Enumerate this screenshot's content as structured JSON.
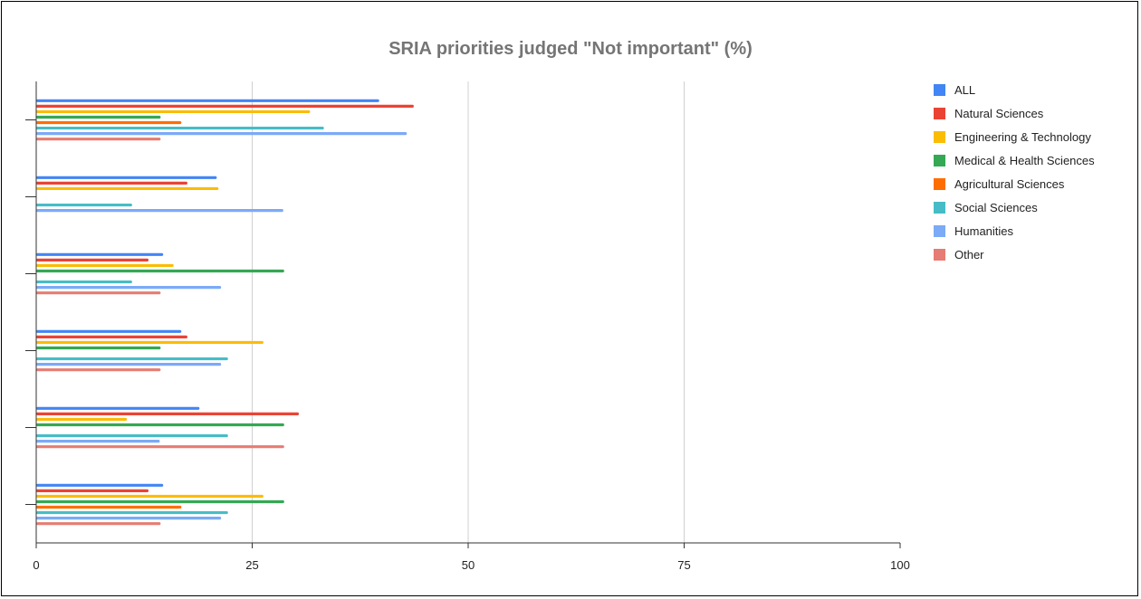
{
  "chart_data": {
    "type": "bar",
    "orientation": "horizontal",
    "title": "SRIA priorities judged \"Not important\" (%)",
    "xlabel": "",
    "ylabel": "",
    "xlim": [
      0,
      100
    ],
    "x_ticks": [
      0,
      25,
      50,
      75,
      100
    ],
    "grid": "vertical",
    "legend_position": "right",
    "categories": [
      "",
      "",
      "",
      "",
      "",
      ""
    ],
    "series": [
      {
        "name": "ALL",
        "color": "#4285f4",
        "values": [
          39.7,
          20.9,
          14.7,
          16.8,
          18.9,
          14.7
        ]
      },
      {
        "name": "Natural Sciences",
        "color": "#ea4335",
        "values": [
          43.7,
          17.5,
          13.0,
          17.5,
          30.4,
          13.0
        ]
      },
      {
        "name": "Engineering & Technology",
        "color": "#fbbc04",
        "values": [
          31.7,
          21.1,
          15.9,
          26.3,
          10.5,
          26.3
        ]
      },
      {
        "name": "Medical & Health Sciences",
        "color": "#34a853",
        "values": [
          14.4,
          0,
          28.7,
          14.4,
          28.7,
          28.7
        ]
      },
      {
        "name": "Agricultural Sciences",
        "color": "#ff6d01",
        "values": [
          16.8,
          0,
          0,
          0,
          0,
          16.8
        ]
      },
      {
        "name": "Social Sciences",
        "color": "#46bdc6",
        "values": [
          33.3,
          11.1,
          11.1,
          22.2,
          22.2,
          22.2
        ]
      },
      {
        "name": "Humanities",
        "color": "#7baaf7",
        "values": [
          42.9,
          28.6,
          21.4,
          21.4,
          14.3,
          21.4
        ]
      },
      {
        "name": "Other",
        "color": "#e67c73",
        "values": [
          14.4,
          0,
          14.4,
          14.4,
          28.7,
          14.4
        ]
      }
    ]
  }
}
